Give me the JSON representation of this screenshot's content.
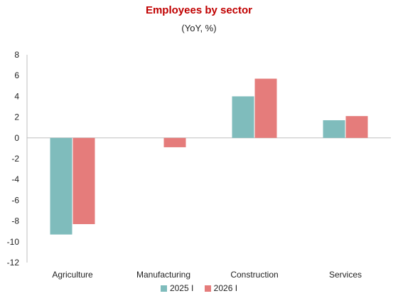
{
  "chart_data": {
    "type": "bar",
    "title": "Employees by sector",
    "subtitle": "(YoY, %)",
    "categories": [
      "Agriculture",
      "Manufacturing",
      "Construction",
      "Services"
    ],
    "series": [
      {
        "name": "2025 I",
        "color": "#7fbcbc",
        "values": [
          -9.3,
          0.0,
          4.0,
          1.7
        ]
      },
      {
        "name": "2026 I",
        "color": "#e57c7b",
        "values": [
          -8.3,
          -0.9,
          5.7,
          2.1
        ]
      }
    ],
    "ylim": [
      -12,
      8
    ],
    "yticks": [
      8,
      6,
      4,
      2,
      0,
      -2,
      -4,
      -6,
      -8,
      -10,
      -12
    ],
    "grid": false,
    "legend_position": "bottom"
  }
}
